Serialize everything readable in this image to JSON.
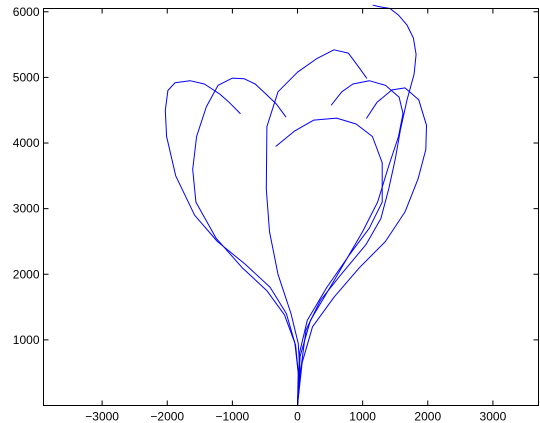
{
  "chart_data": {
    "type": "line",
    "title": "",
    "xlabel": "",
    "ylabel": "",
    "xlim": [
      -3900,
      3700
    ],
    "ylim": [
      0,
      6050
    ],
    "xticks": [
      -3000,
      -2000,
      -1000,
      0,
      1000,
      2000,
      3000
    ],
    "xtick_labels": [
      "−3000",
      "−2000",
      "−1000",
      "0",
      "1000",
      "2000",
      "3000"
    ],
    "yticks": [
      1000,
      2000,
      3000,
      4000,
      5000,
      6000
    ],
    "ytick_labels": [
      "1000",
      "2000",
      "3000",
      "4000",
      "5000",
      "6000"
    ],
    "grid": false,
    "line_color": "#0000ff",
    "series": [
      {
        "x": [
          0,
          10,
          -40,
          -170,
          -420,
          -800,
          -1230,
          -1580,
          -1870,
          -2010,
          -2030,
          -1990,
          -1880,
          -1650,
          -1430,
          -1200,
          -1050,
          -880
        ],
        "y": [
          0,
          500,
          950,
          1400,
          1800,
          2150,
          2500,
          2900,
          3500,
          4100,
          4500,
          4800,
          4920,
          4950,
          4900,
          4750,
          4620,
          4450
        ]
      },
      {
        "x": [
          0,
          20,
          -30,
          -200,
          -470,
          -850,
          -1250,
          -1560,
          -1610,
          -1550,
          -1400,
          -1220,
          -1000,
          -820,
          -650,
          -490,
          -330,
          -180
        ],
        "y": [
          0,
          420,
          920,
          1380,
          1750,
          2100,
          2550,
          3100,
          3600,
          4100,
          4550,
          4880,
          4990,
          4980,
          4900,
          4750,
          4600,
          4400
        ]
      },
      {
        "x": [
          0,
          40,
          10,
          -100,
          -300,
          -430,
          -480,
          -470,
          -300,
          0,
          300,
          560,
          780,
          930,
          1060
        ],
        "y": [
          0,
          500,
          950,
          1400,
          2000,
          2650,
          3300,
          4250,
          4780,
          5080,
          5290,
          5420,
          5370,
          5170,
          4990
        ]
      },
      {
        "x": [
          0,
          40,
          200,
          560,
          1000,
          1230,
          1400,
          1550,
          1620,
          1560,
          1350,
          1100,
          850,
          680,
          520
        ],
        "y": [
          0,
          750,
          1300,
          1900,
          2650,
          3100,
          3650,
          4100,
          4450,
          4700,
          4880,
          4950,
          4900,
          4780,
          4580
        ]
      },
      {
        "x": [
          0,
          30,
          150,
          450,
          800,
          1100,
          1300,
          1300,
          1150,
          900,
          600,
          250,
          -50,
          -330
        ],
        "y": [
          0,
          800,
          1300,
          1800,
          2300,
          2700,
          3100,
          3700,
          4100,
          4290,
          4380,
          4350,
          4180,
          3950
        ]
      },
      {
        "x": [
          0,
          70,
          230,
          560,
          950,
          1350,
          1650,
          1850,
          1970,
          1980,
          1860,
          1650,
          1450,
          1220,
          1060
        ],
        "y": [
          0,
          650,
          1200,
          1650,
          2100,
          2500,
          2950,
          3450,
          3900,
          4270,
          4660,
          4840,
          4810,
          4620,
          4380
        ]
      },
      {
        "x": [
          0,
          50,
          130,
          350,
          670,
          1050,
          1280,
          1400,
          1500,
          1580,
          1680,
          1790,
          1820,
          1780,
          1680,
          1550,
          1420,
          1240,
          1160
        ],
        "y": [
          0,
          550,
          1150,
          1600,
          2000,
          2450,
          2850,
          3300,
          3750,
          4200,
          4650,
          5050,
          5350,
          5600,
          5800,
          5950,
          6050,
          6080,
          6100
        ]
      }
    ]
  }
}
